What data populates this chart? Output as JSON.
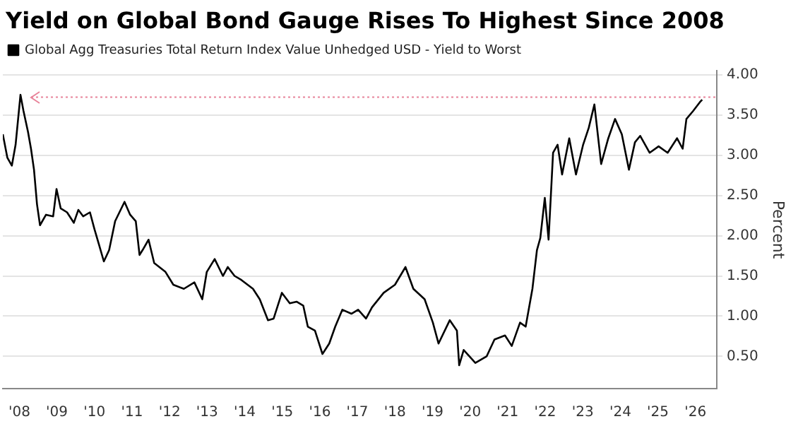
{
  "chart_data": {
    "type": "line",
    "title": "Yield on Global Bond Gauge Rises To Highest Since 2008",
    "ylabel": "Percent",
    "series": [
      {
        "name": "Global Agg Treasuries Total Return Index Value Unhedged USD - Yield to Worst",
        "color": "#000000",
        "x": [
          2007.56,
          2007.68,
          2007.8,
          2007.9,
          2008.03,
          2008.11,
          2008.23,
          2008.31,
          2008.39,
          2008.47,
          2008.55,
          2008.71,
          2008.9,
          2008.99,
          2009.1,
          2009.27,
          2009.45,
          2009.57,
          2009.7,
          2009.88,
          2010.0,
          2010.12,
          2010.25,
          2010.39,
          2010.55,
          2010.8,
          2010.95,
          2011.1,
          2011.2,
          2011.28,
          2011.44,
          2011.59,
          2011.89,
          2012.1,
          2012.38,
          2012.66,
          2012.87,
          2012.99,
          2013.2,
          2013.42,
          2013.55,
          2013.73,
          2013.91,
          2014.22,
          2014.4,
          2014.62,
          2014.77,
          2014.99,
          2015.2,
          2015.38,
          2015.56,
          2015.68,
          2015.87,
          2016.07,
          2016.25,
          2016.41,
          2016.6,
          2016.84,
          2017.02,
          2017.23,
          2017.39,
          2017.7,
          2018.0,
          2018.28,
          2018.49,
          2018.79,
          2019.01,
          2019.16,
          2019.46,
          2019.65,
          2019.71,
          2019.83,
          2020.14,
          2020.44,
          2020.65,
          2020.93,
          2021.11,
          2021.33,
          2021.48,
          2021.66,
          2021.78,
          2021.87,
          2021.99,
          2022.09,
          2022.21,
          2022.33,
          2022.45,
          2022.64,
          2022.82,
          2023.01,
          2023.16,
          2023.31,
          2023.49,
          2023.68,
          2023.86,
          2024.04,
          2024.23,
          2024.39,
          2024.53,
          2024.78,
          2025.02,
          2025.26,
          2025.51,
          2025.66,
          2025.76,
          2025.94,
          2026.12,
          2026.18
        ],
        "values": [
          3.26,
          2.97,
          2.87,
          3.13,
          3.75,
          3.55,
          3.29,
          3.08,
          2.82,
          2.39,
          2.13,
          2.26,
          2.24,
          2.58,
          2.34,
          2.29,
          2.16,
          2.32,
          2.24,
          2.29,
          2.08,
          1.89,
          1.68,
          1.82,
          2.18,
          2.42,
          2.26,
          2.18,
          1.76,
          1.82,
          1.95,
          1.66,
          1.55,
          1.39,
          1.34,
          1.42,
          1.21,
          1.55,
          1.71,
          1.5,
          1.61,
          1.5,
          1.45,
          1.34,
          1.21,
          0.95,
          0.97,
          1.29,
          1.16,
          1.18,
          1.13,
          0.87,
          0.82,
          0.53,
          0.66,
          0.87,
          1.08,
          1.03,
          1.08,
          0.97,
          1.11,
          1.29,
          1.39,
          1.61,
          1.34,
          1.21,
          0.92,
          0.66,
          0.95,
          0.82,
          0.39,
          0.58,
          0.42,
          0.5,
          0.71,
          0.76,
          0.63,
          0.92,
          0.87,
          1.34,
          1.82,
          1.97,
          2.47,
          1.95,
          3.03,
          3.13,
          2.76,
          3.21,
          2.76,
          3.13,
          3.34,
          3.63,
          2.89,
          3.21,
          3.45,
          3.26,
          2.82,
          3.16,
          3.24,
          3.03,
          3.11,
          3.03,
          3.21,
          3.08,
          3.45,
          3.55,
          3.66,
          3.69
        ]
      }
    ],
    "xlim": [
      2007.56,
      2026.57
    ],
    "xticks": [
      {
        "value": 2008,
        "label": "'08"
      },
      {
        "value": 2009,
        "label": "'09"
      },
      {
        "value": 2010,
        "label": "'10"
      },
      {
        "value": 2011,
        "label": "'11"
      },
      {
        "value": 2012,
        "label": "'12"
      },
      {
        "value": 2013,
        "label": "'13"
      },
      {
        "value": 2014,
        "label": "'14"
      },
      {
        "value": 2015,
        "label": "'15"
      },
      {
        "value": 2016,
        "label": "'16"
      },
      {
        "value": 2017,
        "label": "'17"
      },
      {
        "value": 2018,
        "label": "'18"
      },
      {
        "value": 2019,
        "label": "'19"
      },
      {
        "value": 2020,
        "label": "'20"
      },
      {
        "value": 2021,
        "label": "'21"
      },
      {
        "value": 2022,
        "label": "'22"
      },
      {
        "value": 2023,
        "label": "'23"
      },
      {
        "value": 2024,
        "label": "'24"
      },
      {
        "value": 2025,
        "label": "'25"
      },
      {
        "value": 2026,
        "label": "'26"
      }
    ],
    "ylim": [
      0.1,
      4.05
    ],
    "yticks": [
      {
        "value": 0.5,
        "label": "0.50"
      },
      {
        "value": 1,
        "label": "1.00"
      },
      {
        "value": 1.5,
        "label": "1.50"
      },
      {
        "value": 2,
        "label": "2.00"
      },
      {
        "value": 2.5,
        "label": "2.50"
      },
      {
        "value": 3,
        "label": "3.00"
      },
      {
        "value": 3.5,
        "label": "3.50"
      },
      {
        "value": 4,
        "label": "4.00"
      }
    ],
    "ref_lines": [
      {
        "axis": "y",
        "value": 3.72,
        "color": "#e8849a",
        "line_style": "dotted"
      }
    ],
    "grid": "y",
    "legend": "top left",
    "marker": "none",
    "line_style": "solid"
  }
}
